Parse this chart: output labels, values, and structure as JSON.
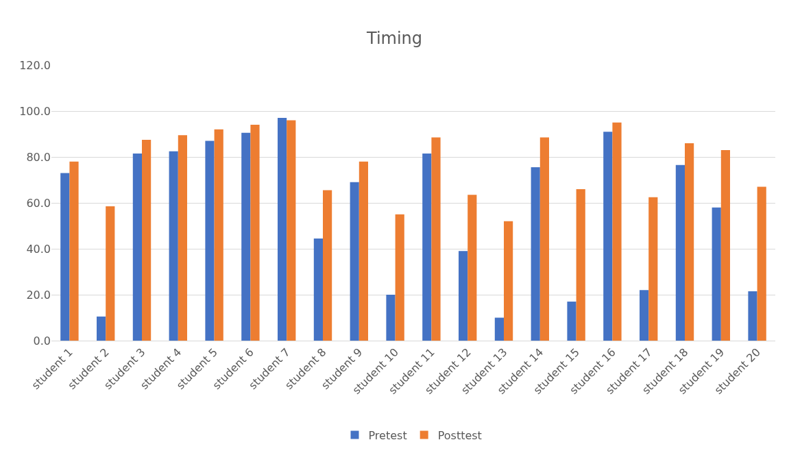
{
  "chart_data": {
    "type": "bar",
    "title": "Timing",
    "categories": [
      "student 1",
      "student 2",
      "student 3",
      "student 4",
      "student 5",
      "student 6",
      "student 7",
      "student 8",
      "student 9",
      "student 10",
      "student 11",
      "student 12",
      "student 13",
      "student 14",
      "student 15",
      "student 16",
      "student 17",
      "student 18",
      "student 19",
      "student 20"
    ],
    "series": [
      {
        "name": "Pretest",
        "color": "#4472c4",
        "values": [
          73,
          10.5,
          81.5,
          82.5,
          87,
          90.5,
          97,
          44.5,
          69,
          20,
          81.5,
          39,
          10,
          75.5,
          17,
          91,
          22,
          76.5,
          58,
          21.5
        ]
      },
      {
        "name": "Posttest",
        "color": "#ed7d31",
        "values": [
          78,
          58.5,
          87.5,
          89.5,
          92,
          94,
          96,
          65.5,
          78,
          55,
          88.5,
          63.5,
          52,
          88.5,
          66,
          95,
          62.5,
          86,
          83,
          67
        ]
      }
    ],
    "ylim": [
      0,
      120
    ],
    "yticks": [
      {
        "value": 0,
        "label": "0.0"
      },
      {
        "value": 20,
        "label": "20.0"
      },
      {
        "value": 40,
        "label": "40.0"
      },
      {
        "value": 60,
        "label": "60.0"
      },
      {
        "value": 80,
        "label": "80.0"
      },
      {
        "value": 100,
        "label": "100.0"
      },
      {
        "value": 120,
        "label": "120.0"
      }
    ],
    "grid": "y",
    "legend": "bottom"
  }
}
